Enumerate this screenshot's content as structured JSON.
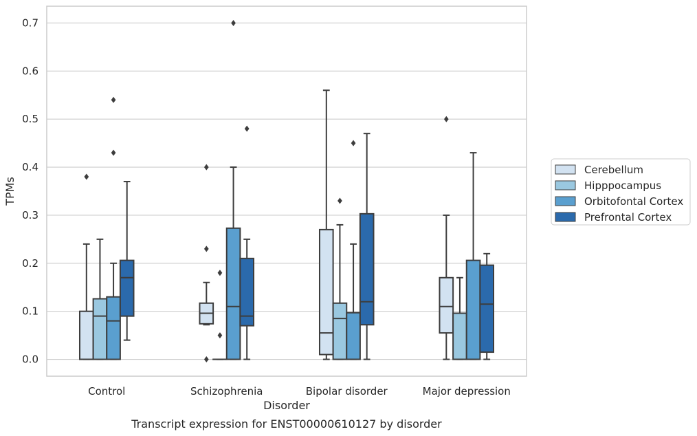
{
  "chart_data": {
    "type": "box",
    "title": "",
    "caption": "Transcript expression for ENST00000610127 by disorder",
    "xlabel": "Disorder",
    "ylabel": "TPMs",
    "ylim": [
      -0.035,
      0.735
    ],
    "yticks": [
      "0.0",
      "0.1",
      "0.2",
      "0.3",
      "0.4",
      "0.5",
      "0.6",
      "0.7"
    ],
    "grid": true,
    "legend_position": "right",
    "categories": [
      "Control",
      "Schizophrenia",
      "Bipolar disorder",
      "Major depression"
    ],
    "series": [
      {
        "name": "Cerebellum",
        "color": "#d2e2f1",
        "boxes": [
          {
            "low": 0.0,
            "q1": 0.0,
            "median": 0.0,
            "q3": 0.1,
            "high": 0.24,
            "outliers": [
              0.38
            ]
          },
          {
            "low": 0.072,
            "q1": 0.074,
            "median": 0.096,
            "q3": 0.117,
            "high": 0.16,
            "outliers": [
              0.4,
              0.23,
              0.0
            ]
          },
          {
            "low": 0.0,
            "q1": 0.01,
            "median": 0.055,
            "q3": 0.27,
            "high": 0.56,
            "outliers": []
          },
          {
            "low": 0.0,
            "q1": 0.055,
            "median": 0.11,
            "q3": 0.17,
            "high": 0.3,
            "outliers": [
              0.5
            ]
          }
        ]
      },
      {
        "name": "Hipppocampus",
        "color": "#9ac8e0",
        "boxes": [
          {
            "low": 0.0,
            "q1": 0.0,
            "median": 0.09,
            "q3": 0.126,
            "high": 0.25,
            "outliers": []
          },
          {
            "low": 0.0,
            "q1": 0.0,
            "median": 0.0,
            "q3": 0.0,
            "high": 0.0,
            "outliers": [
              0.18,
              0.05
            ]
          },
          {
            "low": 0.0,
            "q1": 0.0,
            "median": 0.085,
            "q3": 0.117,
            "high": 0.28,
            "outliers": [
              0.33
            ]
          },
          {
            "low": 0.0,
            "q1": 0.0,
            "median": 0.0,
            "q3": 0.096,
            "high": 0.17,
            "outliers": []
          }
        ]
      },
      {
        "name": "Orbitofontal Cortex",
        "color": "#5a9fcf",
        "boxes": [
          {
            "low": 0.0,
            "q1": 0.0,
            "median": 0.08,
            "q3": 0.13,
            "high": 0.2,
            "outliers": [
              0.54,
              0.43
            ]
          },
          {
            "low": 0.0,
            "q1": 0.0,
            "median": 0.11,
            "q3": 0.273,
            "high": 0.4,
            "outliers": [
              0.7
            ]
          },
          {
            "low": 0.0,
            "q1": 0.0,
            "median": 0.0,
            "q3": 0.097,
            "high": 0.24,
            "outliers": [
              0.45
            ]
          },
          {
            "low": 0.0,
            "q1": 0.0,
            "median": 0.0,
            "q3": 0.206,
            "high": 0.43,
            "outliers": []
          }
        ]
      },
      {
        "name": "Prefrontal Cortex",
        "color": "#2b6aac",
        "boxes": [
          {
            "low": 0.04,
            "q1": 0.09,
            "median": 0.17,
            "q3": 0.206,
            "high": 0.37,
            "outliers": []
          },
          {
            "low": 0.0,
            "q1": 0.07,
            "median": 0.09,
            "q3": 0.21,
            "high": 0.25,
            "outliers": [
              0.48
            ]
          },
          {
            "low": 0.0,
            "q1": 0.072,
            "median": 0.12,
            "q3": 0.303,
            "high": 0.47,
            "outliers": []
          },
          {
            "low": 0.0,
            "q1": 0.015,
            "median": 0.115,
            "q3": 0.196,
            "high": 0.22,
            "outliers": []
          }
        ]
      }
    ]
  }
}
